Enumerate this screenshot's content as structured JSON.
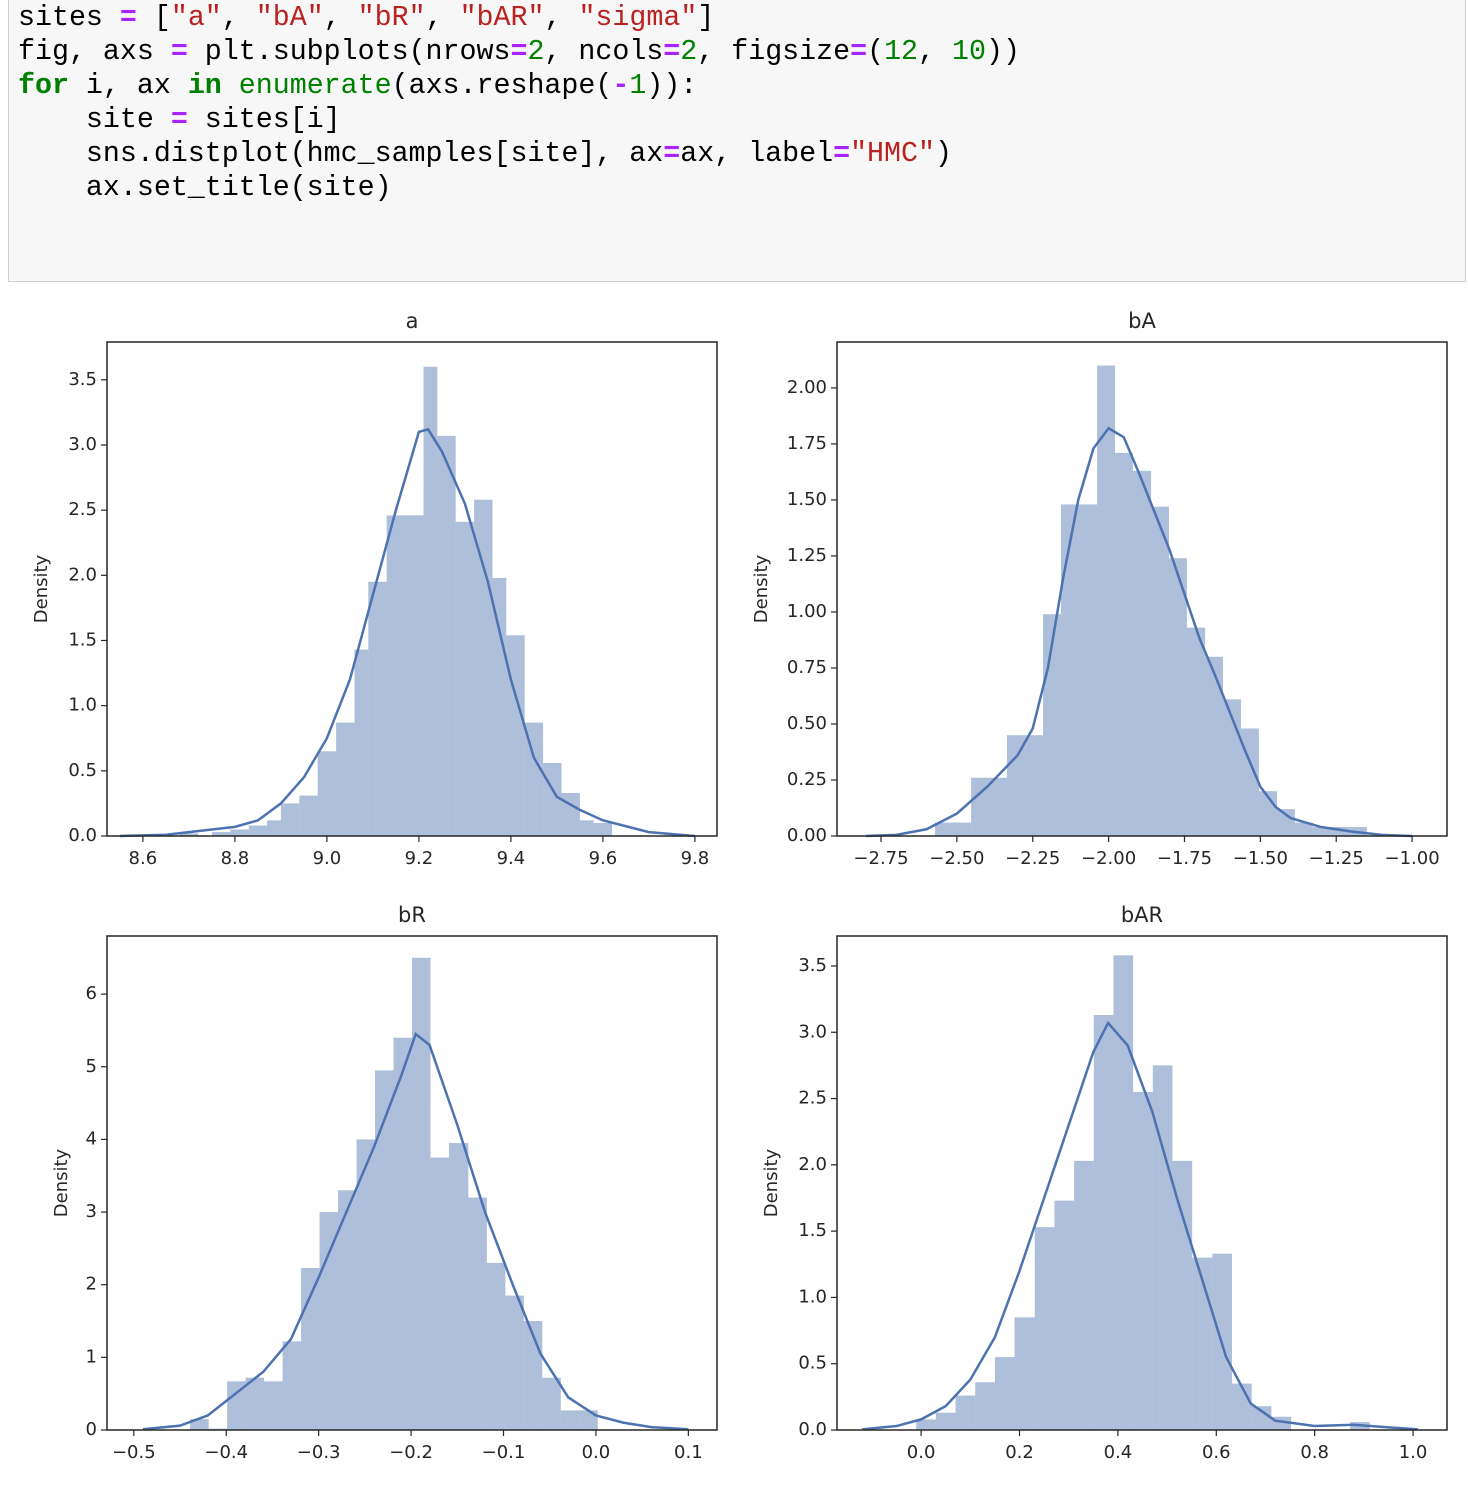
{
  "code": {
    "lines": [
      [
        {
          "text": "sites ",
          "color": "#000000"
        },
        {
          "text": "=",
          "color": "#aa22ff",
          "bold": true
        },
        {
          "text": " [",
          "color": "#000000"
        },
        {
          "text": "\"a\"",
          "color": "#ba2121"
        },
        {
          "text": ", ",
          "color": "#000000"
        },
        {
          "text": "\"bA\"",
          "color": "#ba2121"
        },
        {
          "text": ", ",
          "color": "#000000"
        },
        {
          "text": "\"bR\"",
          "color": "#ba2121"
        },
        {
          "text": ", ",
          "color": "#000000"
        },
        {
          "text": "\"bAR\"",
          "color": "#ba2121"
        },
        {
          "text": ", ",
          "color": "#000000"
        },
        {
          "text": "\"sigma\"",
          "color": "#ba2121"
        },
        {
          "text": "]",
          "color": "#000000"
        }
      ],
      [
        {
          "text": "fig, axs ",
          "color": "#000000"
        },
        {
          "text": "=",
          "color": "#aa22ff",
          "bold": true
        },
        {
          "text": " plt.subplots(nrows",
          "color": "#000000"
        },
        {
          "text": "=",
          "color": "#aa22ff",
          "bold": true
        },
        {
          "text": "2",
          "color": "#008000"
        },
        {
          "text": ", ncols",
          "color": "#000000"
        },
        {
          "text": "=",
          "color": "#aa22ff",
          "bold": true
        },
        {
          "text": "2",
          "color": "#008000"
        },
        {
          "text": ", figsize",
          "color": "#000000"
        },
        {
          "text": "=",
          "color": "#aa22ff",
          "bold": true
        },
        {
          "text": "(",
          "color": "#000000"
        },
        {
          "text": "12",
          "color": "#008000"
        },
        {
          "text": ", ",
          "color": "#000000"
        },
        {
          "text": "10",
          "color": "#008000"
        },
        {
          "text": "))",
          "color": "#000000"
        }
      ],
      [
        {
          "text": "for",
          "color": "#008000",
          "bold": true
        },
        {
          "text": " i, ax ",
          "color": "#000000"
        },
        {
          "text": "in",
          "color": "#008000",
          "bold": true
        },
        {
          "text": " ",
          "color": "#000000"
        },
        {
          "text": "enumerate",
          "color": "#008000"
        },
        {
          "text": "(axs.reshape(",
          "color": "#000000"
        },
        {
          "text": "-",
          "color": "#aa22ff",
          "bold": true
        },
        {
          "text": "1",
          "color": "#008000"
        },
        {
          "text": ")):",
          "color": "#000000"
        }
      ],
      [
        {
          "text": "    site ",
          "color": "#000000"
        },
        {
          "text": "=",
          "color": "#aa22ff",
          "bold": true
        },
        {
          "text": " sites[i]",
          "color": "#000000"
        }
      ],
      [
        {
          "text": "    sns.distplot(hmc_samples[site], ax",
          "color": "#000000"
        },
        {
          "text": "=",
          "color": "#aa22ff",
          "bold": true
        },
        {
          "text": "ax, label",
          "color": "#000000"
        },
        {
          "text": "=",
          "color": "#aa22ff",
          "bold": true
        },
        {
          "text": "\"HMC\"",
          "color": "#ba2121"
        },
        {
          "text": ")",
          "color": "#000000"
        }
      ],
      [
        {
          "text": "    ax.set_title(site)",
          "color": "#000000"
        }
      ]
    ]
  },
  "chart_data": [
    {
      "type": "histogram",
      "title": "a",
      "ylabel": "Density",
      "color": "#4c72b0",
      "bins": [
        8.68,
        8.72,
        8.75,
        8.79,
        8.83,
        8.87,
        8.9,
        8.94,
        8.98,
        9.02,
        9.06,
        9.09,
        9.13,
        9.17,
        9.21,
        9.24,
        9.28,
        9.32,
        9.36,
        9.39,
        9.43,
        9.47,
        9.51,
        9.55,
        9.58,
        9.62
      ],
      "counts": [
        0.02,
        0,
        0.03,
        0.05,
        0.08,
        0.12,
        0.25,
        0.31,
        0.65,
        0.87,
        1.43,
        1.95,
        2.46,
        2.46,
        3.6,
        3.07,
        2.41,
        2.58,
        1.98,
        1.54,
        0.87,
        0.56,
        0.33,
        0.12,
        0.1
      ],
      "kde": {
        "x": [
          8.55,
          8.65,
          8.7,
          8.8,
          8.85,
          8.9,
          8.95,
          9.0,
          9.05,
          9.1,
          9.15,
          9.2,
          9.22,
          9.25,
          9.3,
          9.35,
          9.4,
          9.45,
          9.5,
          9.55,
          9.6,
          9.7,
          9.8
        ],
        "values": [
          0,
          0.01,
          0.03,
          0.07,
          0.12,
          0.25,
          0.45,
          0.75,
          1.2,
          1.85,
          2.5,
          3.1,
          3.12,
          2.95,
          2.55,
          1.95,
          1.2,
          0.6,
          0.3,
          0.2,
          0.12,
          0.03,
          0
        ]
      },
      "xlim": [
        8.522,
        9.848
      ],
      "ylim": [
        0,
        3.79
      ],
      "xticks": [
        8.6,
        8.8,
        {
          "value": 9,
          "label": "9.0"
        },
        9.2,
        9.4,
        9.6,
        9.8
      ],
      "yticks": [
        {
          "value": 0,
          "label": "0.0"
        },
        0.5,
        {
          "value": 1,
          "label": "1.0"
        },
        1.5,
        {
          "value": 2,
          "label": "2.0"
        },
        2.5,
        {
          "value": 3,
          "label": "3.0"
        },
        3.5
      ]
    },
    {
      "type": "histogram",
      "title": "bA",
      "ylabel": "Density",
      "color": "#4c72b0",
      "bins": [
        -2.572,
        -2.513,
        -2.453,
        -2.394,
        -2.335,
        -2.275,
        -2.216,
        -2.157,
        -2.098,
        -2.038,
        -1.979,
        -1.92,
        -1.86,
        -1.801,
        -1.742,
        -1.682,
        -1.623,
        -1.564,
        -1.505,
        -1.445,
        -1.386,
        -1.327,
        -1.267,
        -1.208,
        -1.149
      ],
      "counts": [
        0.06,
        0.06,
        0.26,
        0.26,
        0.45,
        0.45,
        0.99,
        1.48,
        1.48,
        2.1,
        1.71,
        1.63,
        1.47,
        1.24,
        0.93,
        0.8,
        0.61,
        0.48,
        0.2,
        0.12,
        0.06,
        0.04,
        0.04,
        0.04
      ],
      "kde": {
        "x": [
          -2.8,
          -2.7,
          -2.6,
          -2.5,
          -2.4,
          -2.3,
          -2.25,
          -2.2,
          -2.15,
          -2.1,
          -2.05,
          -2.0,
          -1.95,
          -1.9,
          -1.85,
          -1.8,
          -1.75,
          -1.7,
          -1.65,
          -1.6,
          -1.55,
          -1.5,
          -1.45,
          -1.4,
          -1.3,
          -1.2,
          -1.1,
          -1.0
        ],
        "values": [
          0,
          0.005,
          0.03,
          0.1,
          0.22,
          0.36,
          0.48,
          0.75,
          1.15,
          1.5,
          1.73,
          1.82,
          1.78,
          1.62,
          1.45,
          1.28,
          1.08,
          0.88,
          0.72,
          0.55,
          0.38,
          0.22,
          0.13,
          0.08,
          0.04,
          0.02,
          0.005,
          0
        ]
      },
      "xlim": [
        -2.895,
        -0.885
      ],
      "ylim": [
        0,
        2.205
      ],
      "xticks": [
        {
          "value": -2.75,
          "label": "−2.75"
        },
        {
          "value": -2.5,
          "label": "−2.50"
        },
        {
          "value": -2.25,
          "label": "−2.25"
        },
        {
          "value": -2,
          "label": "−2.00"
        },
        {
          "value": -1.75,
          "label": "−1.75"
        },
        {
          "value": -1.5,
          "label": "−1.50"
        },
        {
          "value": -1.25,
          "label": "−1.25"
        },
        {
          "value": -1,
          "label": "−1.00"
        }
      ],
      "yticks": [
        {
          "value": 0,
          "label": "0.00"
        },
        0.25,
        {
          "value": 0.5,
          "label": "0.50"
        },
        0.75,
        {
          "value": 1,
          "label": "1.00"
        },
        1.25,
        {
          "value": 1.5,
          "label": "1.50"
        },
        1.75,
        {
          "value": 2,
          "label": "2.00"
        }
      ]
    },
    {
      "type": "histogram",
      "title": "bR",
      "ylabel": "Density",
      "color": "#4c72b0",
      "bins": [
        -0.439,
        -0.419,
        -0.399,
        -0.379,
        -0.359,
        -0.339,
        -0.319,
        -0.299,
        -0.279,
        -0.259,
        -0.239,
        -0.219,
        -0.199,
        -0.179,
        -0.159,
        -0.138,
        -0.118,
        -0.098,
        -0.078,
        -0.058,
        -0.038,
        -0.018,
        0.002
      ],
      "counts": [
        0.15,
        0.02,
        0.67,
        0.72,
        0.67,
        1.22,
        2.23,
        3.0,
        3.3,
        4.0,
        4.95,
        5.4,
        6.5,
        3.75,
        3.95,
        3.2,
        2.3,
        1.85,
        1.5,
        0.72,
        0.27,
        0.27
      ],
      "kde": {
        "x": [
          -0.49,
          -0.45,
          -0.42,
          -0.39,
          -0.36,
          -0.33,
          -0.3,
          -0.27,
          -0.24,
          -0.21,
          -0.195,
          -0.18,
          -0.15,
          -0.12,
          -0.09,
          -0.06,
          -0.03,
          0.0,
          0.03,
          0.06,
          0.1
        ],
        "values": [
          0.01,
          0.06,
          0.2,
          0.5,
          0.8,
          1.25,
          2.1,
          3.0,
          3.9,
          4.9,
          5.45,
          5.3,
          4.2,
          3.0,
          2.0,
          1.05,
          0.45,
          0.2,
          0.1,
          0.04,
          0.01
        ]
      },
      "xlim": [
        -0.529,
        0.131
      ],
      "ylim": [
        0,
        6.8
      ],
      "xticks": [
        {
          "value": -0.5,
          "label": "−0.5"
        },
        {
          "value": -0.4,
          "label": "−0.4"
        },
        {
          "value": -0.3,
          "label": "−0.3"
        },
        {
          "value": -0.2,
          "label": "−0.2"
        },
        {
          "value": -0.1,
          "label": "−0.1"
        },
        {
          "value": 0,
          "label": "0.0"
        },
        0.1
      ],
      "yticks": [
        0,
        1,
        2,
        3,
        4,
        5,
        6
      ]
    },
    {
      "type": "histogram",
      "title": "bAR",
      "ylabel": "Density",
      "color": "#4c72b0",
      "bins": [
        -0.01,
        0.03,
        0.07,
        0.11,
        0.15,
        0.19,
        0.231,
        0.271,
        0.311,
        0.351,
        0.391,
        0.431,
        0.471,
        0.511,
        0.551,
        0.592,
        0.632,
        0.672,
        0.712,
        0.752,
        0.792,
        0.832,
        0.872,
        0.912
      ],
      "counts": [
        0.08,
        0.13,
        0.26,
        0.36,
        0.55,
        0.85,
        1.53,
        1.73,
        2.03,
        3.13,
        3.58,
        2.55,
        2.75,
        2.03,
        1.3,
        1.33,
        0.35,
        0.18,
        0.1,
        0,
        0,
        0,
        0.06
      ],
      "kde": {
        "x": [
          -0.12,
          -0.05,
          0.0,
          0.05,
          0.1,
          0.15,
          0.2,
          0.25,
          0.3,
          0.35,
          0.38,
          0.42,
          0.47,
          0.52,
          0.57,
          0.62,
          0.67,
          0.72,
          0.8,
          0.88,
          0.95,
          1.01
        ],
        "values": [
          0.005,
          0.03,
          0.08,
          0.18,
          0.38,
          0.7,
          1.2,
          1.75,
          2.3,
          2.85,
          3.07,
          2.9,
          2.4,
          1.75,
          1.15,
          0.55,
          0.2,
          0.07,
          0.03,
          0.04,
          0.02,
          0.005
        ]
      },
      "xlim": [
        -0.171,
        1.069
      ],
      "ylim": [
        0,
        3.726
      ],
      "xticks": [
        {
          "value": 0,
          "label": "0.0"
        },
        0.2,
        0.4,
        0.6,
        0.8,
        {
          "value": 1,
          "label": "1.0"
        }
      ],
      "yticks": [
        {
          "value": 0,
          "label": "0.0"
        },
        0.5,
        {
          "value": 1,
          "label": "1.0"
        },
        1.5,
        {
          "value": 2,
          "label": "2.0"
        },
        2.5,
        {
          "value": 3,
          "label": "3.0"
        },
        3.5
      ]
    }
  ]
}
